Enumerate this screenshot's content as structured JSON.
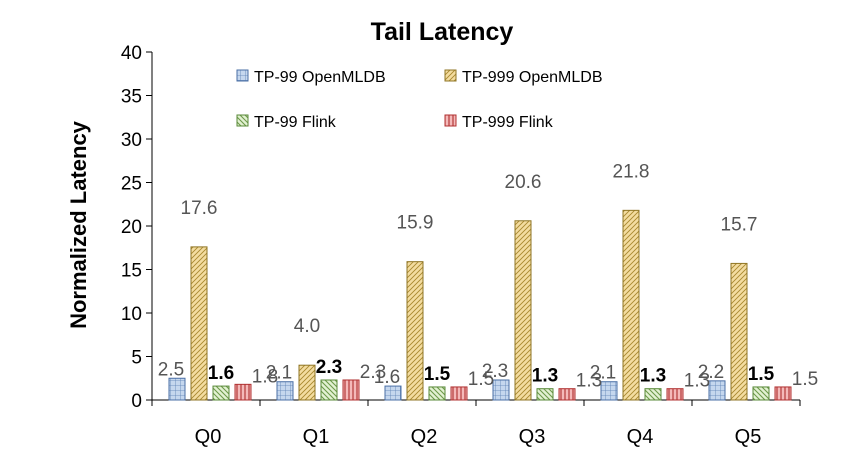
{
  "chart_data": {
    "type": "bar",
    "title": "Tail Latency",
    "xlabel": "",
    "ylabel": "Normalized Latency",
    "ylim": [
      0,
      40
    ],
    "yticks": [
      0,
      5,
      10,
      15,
      20,
      25,
      30,
      35,
      40
    ],
    "grid": false,
    "legend_position": "top",
    "categories": [
      "Q0",
      "Q1",
      "Q2",
      "Q3",
      "Q4",
      "Q5"
    ],
    "series": [
      {
        "name": "TP-99 OpenMLDB",
        "values": [
          2.5,
          2.1,
          1.6,
          2.3,
          2.1,
          2.2
        ],
        "labels": [
          "2.5",
          "2.1",
          "1.6",
          "2.3",
          "2.1",
          "2.2"
        ],
        "color": "#c5d7ee",
        "stroke": "#4a6fa5",
        "pattern": "grid"
      },
      {
        "name": "TP-999 OpenMLDB",
        "values": [
          17.6,
          4.0,
          15.9,
          20.6,
          21.8,
          15.7
        ],
        "labels": [
          "17.6",
          "4.0",
          "15.9",
          "20.6",
          "21.8",
          "15.7"
        ],
        "color": "#eed596",
        "stroke": "#8f7524",
        "pattern": "diag"
      },
      {
        "name": "TP-99 Flink",
        "values": [
          1.6,
          2.3,
          1.5,
          1.3,
          1.3,
          1.5
        ],
        "labels": [
          "1.6",
          "2.3",
          "1.5",
          "1.3",
          "1.3",
          "1.5"
        ],
        "color": "#d8ecc4",
        "stroke": "#5a8a3a",
        "pattern": "diagrev"
      },
      {
        "name": "TP-999 Flink",
        "values": [
          1.8,
          2.3,
          1.5,
          1.3,
          1.3,
          1.5
        ],
        "labels": [
          "1.8",
          "2.3",
          "1.5",
          "1.3",
          "1.3",
          "1.5"
        ],
        "color": "#f2b3b3",
        "stroke": "#b03030",
        "pattern": "vert"
      }
    ]
  }
}
